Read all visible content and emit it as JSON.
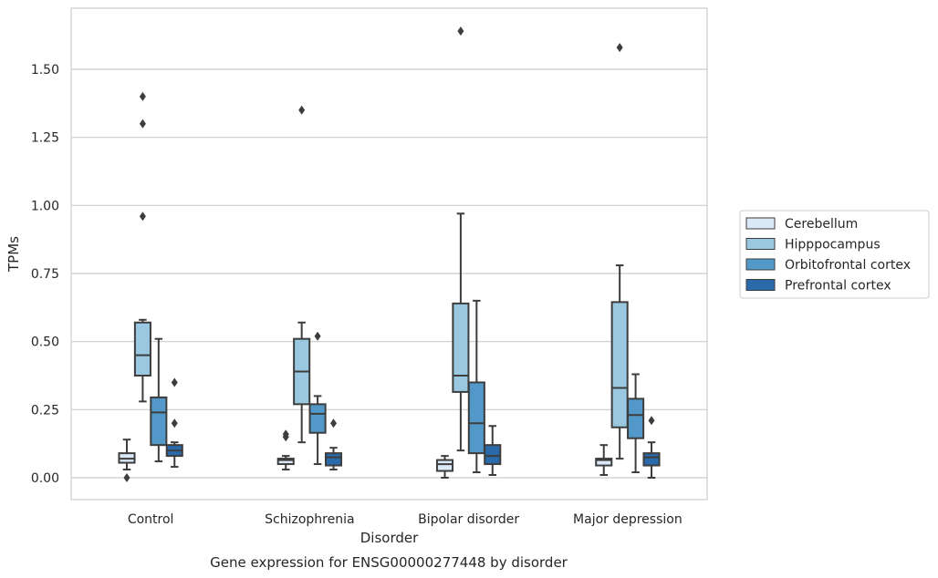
{
  "chart_data": {
    "type": "boxplot",
    "xlabel": "Disorder",
    "ylabel": "TPMs",
    "caption": "Gene expression for ENSG00000277448 by disorder",
    "ylim": [
      -0.08,
      1.75
    ],
    "yticks": [
      0.0,
      0.25,
      0.5,
      0.75,
      1.0,
      1.25,
      1.5
    ],
    "ytick_labels": [
      "0.00",
      "0.25",
      "0.50",
      "0.75",
      "1.00",
      "1.25",
      "1.50"
    ],
    "grid": true,
    "legend_position": "right",
    "categories": [
      "Control",
      "Schizophrenia",
      "Bipolar disorder",
      "Major depression"
    ],
    "series": [
      {
        "name": "Cerebellum",
        "color": "#dbe9f6",
        "boxes": [
          {
            "whislo": 0.03,
            "q1": 0.055,
            "med": 0.07,
            "q3": 0.09,
            "whishi": 0.14,
            "fliers": [
              0.0
            ]
          },
          {
            "whislo": 0.03,
            "q1": 0.05,
            "med": 0.065,
            "q3": 0.07,
            "whishi": 0.08,
            "fliers": [
              0.15,
              0.16
            ]
          },
          {
            "whislo": 0.0,
            "q1": 0.025,
            "med": 0.05,
            "q3": 0.065,
            "whishi": 0.08,
            "fliers": []
          },
          {
            "whislo": 0.01,
            "q1": 0.045,
            "med": 0.065,
            "q3": 0.07,
            "whishi": 0.12,
            "fliers": []
          }
        ]
      },
      {
        "name": "Hipppocampus",
        "color": "#9ac8e0",
        "boxes": [
          {
            "whislo": 0.28,
            "q1": 0.375,
            "med": 0.45,
            "q3": 0.57,
            "whishi": 0.58,
            "fliers": [
              0.96,
              1.3,
              1.4
            ]
          },
          {
            "whislo": 0.13,
            "q1": 0.27,
            "med": 0.39,
            "q3": 0.51,
            "whishi": 0.57,
            "fliers": [
              1.35
            ]
          },
          {
            "whislo": 0.1,
            "q1": 0.315,
            "med": 0.375,
            "q3": 0.64,
            "whishi": 0.97,
            "fliers": [
              1.64
            ]
          },
          {
            "whislo": 0.07,
            "q1": 0.185,
            "med": 0.33,
            "q3": 0.645,
            "whishi": 0.78,
            "fliers": [
              1.58
            ]
          }
        ]
      },
      {
        "name": "Orbitofrontal cortex",
        "color": "#5299c9",
        "boxes": [
          {
            "whislo": 0.06,
            "q1": 0.12,
            "med": 0.24,
            "q3": 0.295,
            "whishi": 0.51,
            "fliers": []
          },
          {
            "whislo": 0.05,
            "q1": 0.165,
            "med": 0.235,
            "q3": 0.27,
            "whishi": 0.3,
            "fliers": [
              0.52
            ]
          },
          {
            "whislo": 0.02,
            "q1": 0.09,
            "med": 0.2,
            "q3": 0.35,
            "whishi": 0.65,
            "fliers": []
          },
          {
            "whislo": 0.02,
            "q1": 0.145,
            "med": 0.23,
            "q3": 0.29,
            "whishi": 0.38,
            "fliers": []
          }
        ]
      },
      {
        "name": "Prefrontal cortex",
        "color": "#2a6aaa",
        "boxes": [
          {
            "whislo": 0.04,
            "q1": 0.08,
            "med": 0.1,
            "q3": 0.12,
            "whishi": 0.13,
            "fliers": [
              0.2,
              0.35
            ]
          },
          {
            "whislo": 0.03,
            "q1": 0.045,
            "med": 0.075,
            "q3": 0.09,
            "whishi": 0.11,
            "fliers": [
              0.2
            ]
          },
          {
            "whislo": 0.01,
            "q1": 0.05,
            "med": 0.08,
            "q3": 0.12,
            "whishi": 0.19,
            "fliers": []
          },
          {
            "whislo": 0.0,
            "q1": 0.045,
            "med": 0.075,
            "q3": 0.09,
            "whishi": 0.13,
            "fliers": [
              0.21
            ]
          }
        ]
      }
    ]
  }
}
